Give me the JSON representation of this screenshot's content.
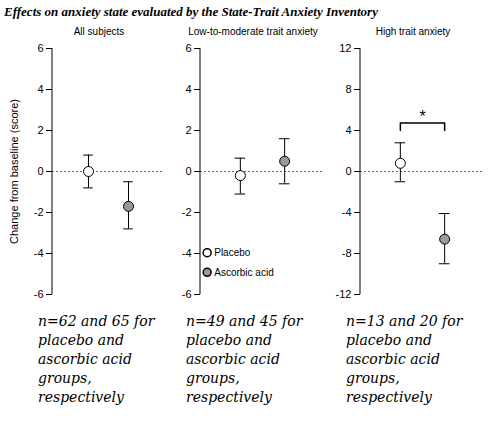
{
  "title": "Effects on anxiety state evaluated by the State-Trait Anxiety Inventory",
  "chart_data": [
    {
      "type": "scatter",
      "title": "All subjects",
      "y_label": "Change from baseline (score)",
      "ylim": [
        -6,
        6
      ],
      "yticks": [
        -6,
        -4,
        -2,
        0,
        2,
        4,
        6
      ],
      "marker": "circle",
      "series": [
        {
          "name": "Placebo",
          "color": "#ffffff",
          "values": [
            0
          ],
          "error_low": [
            -0.8
          ],
          "error_high": [
            0.8
          ]
        },
        {
          "name": "Ascorbic acid",
          "color": "#999999",
          "values": [
            -1.7
          ],
          "error_low": [
            -2.8
          ],
          "error_high": [
            -0.5
          ]
        }
      ],
      "caption": [
        "n=62 and 65 for",
        "placebo and",
        "ascorbic acid",
        "groups,",
        "respectively"
      ]
    },
    {
      "type": "scatter",
      "title": "Low-to-moderate trait anxiety",
      "ylim": [
        -6,
        6
      ],
      "yticks": [
        -6,
        -4,
        -2,
        0,
        2,
        4,
        6
      ],
      "marker": "circle",
      "legend": "bottom-left",
      "series": [
        {
          "name": "Placebo",
          "color": "#ffffff",
          "values": [
            -0.2
          ],
          "error_low": [
            -1.1
          ],
          "error_high": [
            0.65
          ]
        },
        {
          "name": "Ascorbic acid",
          "color": "#999999",
          "values": [
            0.5
          ],
          "error_low": [
            -0.6
          ],
          "error_high": [
            1.6
          ]
        }
      ],
      "caption": [
        "n=49 and 45 for",
        "placebo and",
        "ascorbic acid",
        "groups,",
        "respectively"
      ]
    },
    {
      "type": "scatter",
      "title": "High trait anxiety",
      "ylim": [
        -12,
        12
      ],
      "yticks": [
        -12,
        -8,
        -4,
        0,
        4,
        8,
        12
      ],
      "marker": "circle",
      "series": [
        {
          "name": "Placebo",
          "color": "#ffffff",
          "values": [
            0.8
          ],
          "error_low": [
            -1.0
          ],
          "error_high": [
            2.8
          ]
        },
        {
          "name": "Ascorbic acid",
          "color": "#999999",
          "values": [
            -6.6
          ],
          "error_low": [
            -9.0
          ],
          "error_high": [
            -4.1
          ]
        }
      ],
      "annotations": [
        {
          "text": "*",
          "between": [
            "Placebo",
            "Ascorbic acid"
          ]
        }
      ],
      "caption": [
        "n=13 and 20 for",
        "placebo and",
        "ascorbic acid",
        "groups,",
        "respectively"
      ]
    }
  ]
}
